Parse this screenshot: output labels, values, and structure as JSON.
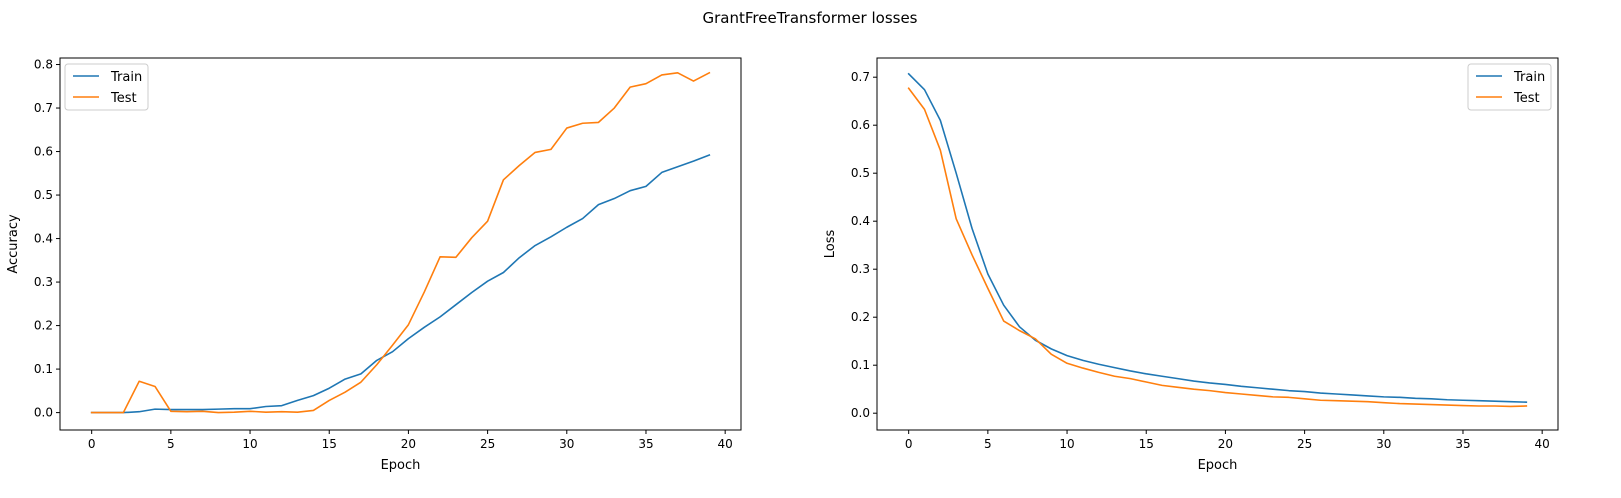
{
  "figure": {
    "suptitle": "GrantFreeTransformer losses"
  },
  "chart_data": [
    {
      "type": "line",
      "xlabel": "Epoch",
      "ylabel": "Accuracy",
      "xlim": [
        -2,
        41
      ],
      "ylim": [
        -0.04,
        0.815
      ],
      "xticks": [
        0,
        5,
        10,
        15,
        20,
        25,
        30,
        35,
        40
      ],
      "yticks": [
        0.0,
        0.1,
        0.2,
        0.3,
        0.4,
        0.5,
        0.6,
        0.7,
        0.8
      ],
      "legend_position": "upper left",
      "x": [
        0,
        1,
        2,
        3,
        4,
        5,
        6,
        7,
        8,
        9,
        10,
        11,
        12,
        13,
        14,
        15,
        16,
        17,
        18,
        19,
        20,
        21,
        22,
        23,
        24,
        25,
        26,
        27,
        28,
        29,
        30,
        31,
        32,
        33,
        34,
        35,
        36,
        37,
        38,
        39
      ],
      "series": [
        {
          "name": "Train",
          "color": "#1f77b4",
          "values": [
            0.0,
            0.0,
            0.0,
            0.002,
            0.008,
            0.007,
            0.007,
            0.007,
            0.008,
            0.009,
            0.009,
            0.014,
            0.016,
            0.028,
            0.039,
            0.056,
            0.077,
            0.089,
            0.12,
            0.14,
            0.17,
            0.196,
            0.22,
            0.248,
            0.276,
            0.302,
            0.322,
            0.356,
            0.384,
            0.404,
            0.426,
            0.446,
            0.478,
            0.492,
            0.51,
            0.52,
            0.552,
            0.565,
            0.578,
            0.592
          ]
        },
        {
          "name": "Test",
          "color": "#ff7f0e",
          "values": [
            0.0,
            0.0,
            0.0,
            0.072,
            0.06,
            0.003,
            0.002,
            0.003,
            0.0,
            0.001,
            0.003,
            0.001,
            0.002,
            0.001,
            0.005,
            0.028,
            0.047,
            0.07,
            0.11,
            0.155,
            0.202,
            0.277,
            0.358,
            0.357,
            0.402,
            0.44,
            0.535,
            0.568,
            0.598,
            0.605,
            0.654,
            0.665,
            0.667,
            0.7,
            0.748,
            0.756,
            0.776,
            0.781,
            0.762,
            0.781
          ]
        }
      ]
    },
    {
      "type": "line",
      "xlabel": "Epoch",
      "ylabel": "Loss",
      "xlim": [
        -2,
        41
      ],
      "ylim": [
        -0.035,
        0.74
      ],
      "xticks": [
        0,
        5,
        10,
        15,
        20,
        25,
        30,
        35,
        40
      ],
      "yticks": [
        0.0,
        0.1,
        0.2,
        0.3,
        0.4,
        0.5,
        0.6,
        0.7
      ],
      "legend_position": "upper right",
      "x": [
        0,
        1,
        2,
        3,
        4,
        5,
        6,
        7,
        8,
        9,
        10,
        11,
        12,
        13,
        14,
        15,
        16,
        17,
        18,
        19,
        20,
        21,
        22,
        23,
        24,
        25,
        26,
        27,
        28,
        29,
        30,
        31,
        32,
        33,
        34,
        35,
        36,
        37,
        38,
        39
      ],
      "series": [
        {
          "name": "Train",
          "color": "#1f77b4",
          "values": [
            0.707,
            0.674,
            0.61,
            0.5,
            0.385,
            0.29,
            0.225,
            0.18,
            0.152,
            0.134,
            0.12,
            0.11,
            0.102,
            0.095,
            0.088,
            0.082,
            0.077,
            0.072,
            0.067,
            0.063,
            0.06,
            0.056,
            0.053,
            0.05,
            0.047,
            0.045,
            0.042,
            0.04,
            0.038,
            0.036,
            0.034,
            0.033,
            0.031,
            0.03,
            0.028,
            0.027,
            0.026,
            0.025,
            0.024,
            0.023
          ]
        },
        {
          "name": "Test",
          "color": "#ff7f0e",
          "values": [
            0.677,
            0.633,
            0.548,
            0.405,
            0.33,
            0.26,
            0.192,
            0.172,
            0.155,
            0.123,
            0.104,
            0.094,
            0.085,
            0.077,
            0.072,
            0.065,
            0.058,
            0.054,
            0.05,
            0.047,
            0.043,
            0.04,
            0.037,
            0.034,
            0.033,
            0.03,
            0.027,
            0.026,
            0.025,
            0.024,
            0.022,
            0.02,
            0.019,
            0.018,
            0.017,
            0.016,
            0.015,
            0.015,
            0.014,
            0.015
          ]
        }
      ]
    }
  ]
}
